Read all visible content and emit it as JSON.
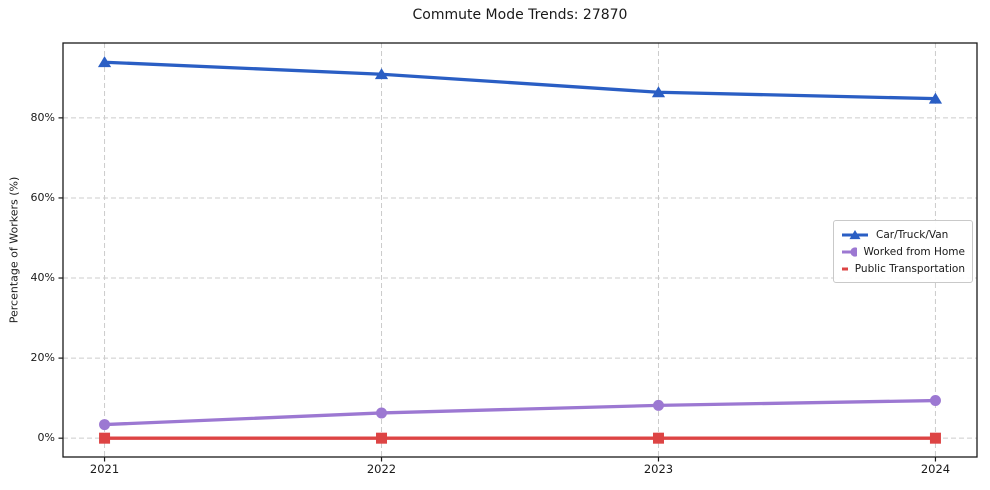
{
  "figure": {
    "title": "Commute Mode Trends: 27870"
  },
  "chart_data": {
    "type": "line",
    "title": "Commute Mode Trends: 27870",
    "xlabel": "",
    "ylabel": "Percentage of Workers (%)",
    "x": [
      2021,
      2022,
      2023,
      2024
    ],
    "series": [
      {
        "name": "Car/Truck/Van",
        "values": [
          93.9,
          90.9,
          86.4,
          84.8
        ],
        "color": "#2a5ec4",
        "marker": "triangle"
      },
      {
        "name": "Worked from Home",
        "values": [
          3.4,
          6.3,
          8.2,
          9.4
        ],
        "color": "#9c78d2",
        "marker": "circle"
      },
      {
        "name": "Public Transportation",
        "values": [
          0.0,
          0.0,
          0.0,
          0.0
        ],
        "color": "#dd4444",
        "marker": "square"
      }
    ],
    "ylim": [
      -4.7,
      98.7
    ],
    "yticks": [
      0,
      20,
      40,
      60,
      80
    ],
    "ytick_labels": [
      "0%",
      "20%",
      "40%",
      "60%",
      "80%"
    ],
    "grid": true,
    "grid_style": "dashed",
    "legend_position": "center-right",
    "colors": {
      "grid": "#cccccc",
      "spine": "#1a1a1a",
      "text": "#1a1a1a",
      "background": "#ffffff"
    }
  }
}
